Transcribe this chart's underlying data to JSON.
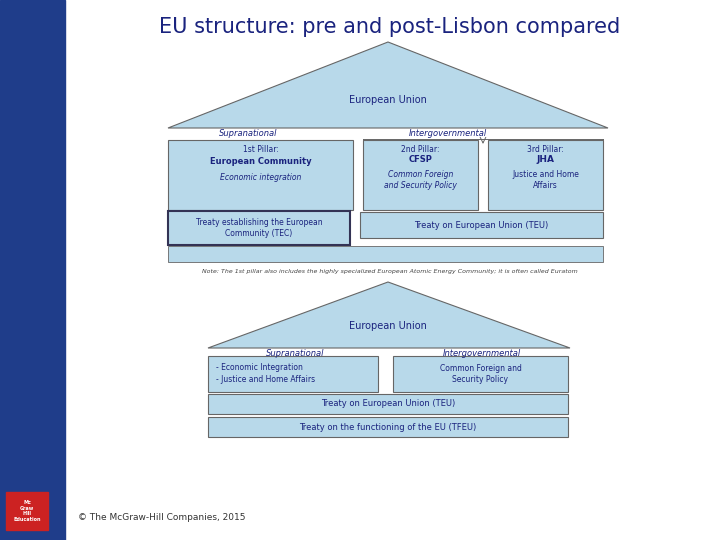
{
  "title": "EU structure: pre and post-Lisbon compared",
  "title_color": "#1a237e",
  "title_fontsize": 15,
  "bg_color": "#ffffff",
  "left_bar_color": "#1f3d8a",
  "triangle_fill": "#b8d9ea",
  "triangle_edge": "#666666",
  "box_fill": "#b8d9ea",
  "box_edge": "#666666",
  "box_edge_dark": "#333355",
  "text_color": "#1a237e",
  "note_color": "#444444",
  "copyright_color": "#333333",
  "copyright_text": "© The McGraw-Hill Companies, 2015",
  "pre_label": "European Union",
  "pre_supranational": "Supranational",
  "pre_intergovernmental": "Intergovernmental",
  "pre_p1_line1": "1st Pillar:",
  "pre_p1_line2": "European Community",
  "pre_p1_line3": "Economic integration",
  "pre_p2_line1": "2nd Pillar:",
  "pre_p2_line2": "CFSP",
  "pre_p2_line3": "Common Foreign\nand Security Policy",
  "pre_p3_line1": "3rd Pillar:",
  "pre_p3_line2": "JHA",
  "pre_p3_line3": "Justice and Home\nAffairs",
  "pre_tec": "Treaty establishing the European\nCommunity (TEC)",
  "pre_teu": "Treaty on European Union (TEU)",
  "pre_note": "Note: The 1st pillar also includes the highly specialized European Atomic Energy Community; it is often called Euratom",
  "post_label": "European Union",
  "post_supranational": "Supranational",
  "post_intergovernmental": "Intergovernmental",
  "post_p1_line1": "- Economic Integration",
  "post_p1_line2": "- Justice and Home Affairs",
  "post_p2_text": "Common Foreign and\nSecurity Policy",
  "post_teu": "Treaty on European Union (TEU)",
  "post_tfeu": "Treaty on the functioning of the EU (TFEU)"
}
